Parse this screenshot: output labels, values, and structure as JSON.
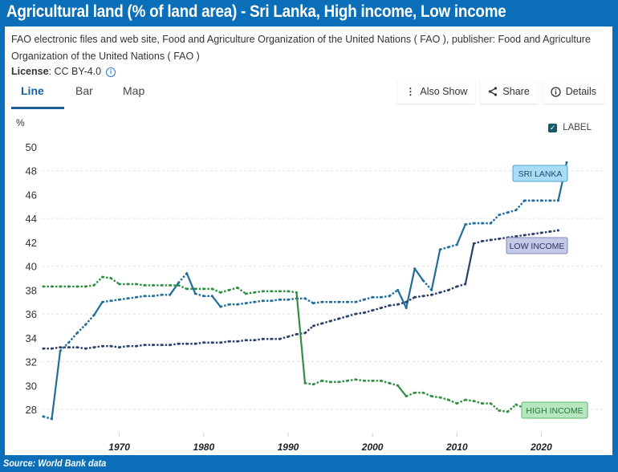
{
  "header": {
    "title": "Agricultural land (% of land area) - Sri Lanka, High income, Low income"
  },
  "meta": {
    "source_text": "FAO electronic files and web site, Food and Agriculture Organization of the United Nations ( FAO ), publisher: Food and Agriculture Organization of the United Nations ( FAO )",
    "license_label": "License",
    "license_value": ": CC BY-4.0",
    "info_icon": "info-icon"
  },
  "tabs": [
    {
      "label": "Line",
      "active": true
    },
    {
      "label": "Bar",
      "active": false
    },
    {
      "label": "Map",
      "active": false
    }
  ],
  "actions": [
    {
      "label": "Also Show",
      "icon": "kebab-icon"
    },
    {
      "label": "Share",
      "icon": "share-icon"
    },
    {
      "label": "Details",
      "icon": "info-icon"
    }
  ],
  "legend_toggle": {
    "label": "LABEL",
    "checked": true
  },
  "footer": {
    "source": "Source: World Bank data"
  },
  "colors": {
    "frame": "#0a6fb8",
    "sri_lanka": "#1f6e99",
    "low_income": "#2a3f6b",
    "high_income": "#2f8f45",
    "sri_lanka_label_bg": "#a9dcf5",
    "low_income_label_bg": "#c4c9e8",
    "high_income_label_bg": "#b8e6bf"
  },
  "chart_data": {
    "type": "line",
    "title": "Agricultural land (% of land area) - Sri Lanka, High income, Low income",
    "xlabel": "",
    "ylabel": "%",
    "xlim": [
      1961,
      2023
    ],
    "ylim": [
      27,
      50
    ],
    "yticks": [
      28,
      30,
      32,
      34,
      36,
      38,
      40,
      42,
      44,
      46,
      48,
      50
    ],
    "xticks": [
      1970,
      1980,
      1990,
      2000,
      2010,
      2020
    ],
    "grid": true,
    "legend": "inline-end-labels",
    "series": [
      {
        "name": "SRI LANKA",
        "x": [
          1961,
          1962,
          1963,
          1964,
          1965,
          1966,
          1967,
          1968,
          1969,
          1970,
          1971,
          1972,
          1973,
          1974,
          1975,
          1976,
          1977,
          1978,
          1979,
          1980,
          1981,
          1982,
          1983,
          1984,
          1985,
          1986,
          1987,
          1988,
          1989,
          1990,
          1991,
          1992,
          1993,
          1994,
          1995,
          1996,
          1997,
          1998,
          1999,
          2000,
          2001,
          2002,
          2003,
          2004,
          2005,
          2006,
          2007,
          2008,
          2009,
          2010,
          2011,
          2012,
          2013,
          2014,
          2015,
          2016,
          2017,
          2018,
          2019,
          2020,
          2021,
          2022,
          2023
        ],
        "values": [
          27.4,
          27.2,
          32.9,
          33.6,
          34.4,
          35.1,
          35.9,
          37.0,
          37.1,
          37.2,
          37.3,
          37.4,
          37.5,
          37.5,
          37.6,
          37.6,
          38.6,
          39.4,
          37.7,
          37.5,
          37.5,
          36.6,
          36.8,
          36.8,
          36.9,
          37.0,
          37.1,
          37.1,
          37.2,
          37.2,
          37.3,
          37.3,
          36.9,
          37.0,
          37.0,
          37.0,
          37.0,
          37.0,
          37.2,
          37.4,
          37.4,
          37.5,
          38.0,
          36.5,
          39.8,
          38.8,
          38.0,
          41.4,
          41.6,
          41.8,
          43.5,
          43.6,
          43.6,
          43.6,
          44.3,
          44.5,
          44.7,
          45.5,
          45.5,
          45.5,
          45.5,
          45.5,
          48.7
        ]
      },
      {
        "name": "LOW INCOME",
        "x": [
          1961,
          1962,
          1963,
          1964,
          1965,
          1966,
          1967,
          1968,
          1969,
          1970,
          1971,
          1972,
          1973,
          1974,
          1975,
          1976,
          1977,
          1978,
          1979,
          1980,
          1981,
          1982,
          1983,
          1984,
          1985,
          1986,
          1987,
          1988,
          1989,
          1990,
          1991,
          1992,
          1993,
          1994,
          1995,
          1996,
          1997,
          1998,
          1999,
          2000,
          2001,
          2002,
          2003,
          2004,
          2005,
          2006,
          2007,
          2008,
          2009,
          2010,
          2011,
          2012,
          2013,
          2014,
          2015,
          2016,
          2017,
          2018,
          2019,
          2020,
          2021,
          2022
        ],
        "values": [
          33.1,
          33.1,
          33.2,
          33.2,
          33.2,
          33.1,
          33.2,
          33.3,
          33.3,
          33.2,
          33.3,
          33.3,
          33.4,
          33.4,
          33.4,
          33.4,
          33.5,
          33.5,
          33.5,
          33.6,
          33.6,
          33.6,
          33.7,
          33.7,
          33.8,
          33.8,
          33.9,
          33.9,
          33.9,
          34.1,
          34.3,
          34.4,
          35.0,
          35.2,
          35.4,
          35.6,
          35.8,
          36.0,
          36.1,
          36.3,
          36.5,
          36.7,
          36.8,
          37.0,
          37.4,
          37.5,
          37.6,
          37.8,
          38.0,
          38.3,
          38.5,
          41.9,
          42.1,
          42.2,
          42.3,
          42.4,
          42.5,
          42.6,
          42.7,
          42.8,
          42.9,
          43.0
        ]
      },
      {
        "name": "HIGH INCOME",
        "x": [
          1961,
          1962,
          1963,
          1964,
          1965,
          1966,
          1967,
          1968,
          1969,
          1970,
          1971,
          1972,
          1973,
          1974,
          1975,
          1976,
          1977,
          1978,
          1979,
          1980,
          1981,
          1982,
          1983,
          1984,
          1985,
          1986,
          1987,
          1988,
          1989,
          1990,
          1991,
          1992,
          1993,
          1994,
          1995,
          1996,
          1997,
          1998,
          1999,
          2000,
          2001,
          2002,
          2003,
          2004,
          2005,
          2006,
          2007,
          2008,
          2009,
          2010,
          2011,
          2012,
          2013,
          2014,
          2015,
          2016,
          2017,
          2018,
          2019,
          2020,
          2021,
          2022
        ],
        "values": [
          38.3,
          38.3,
          38.3,
          38.3,
          38.3,
          38.3,
          38.4,
          39.1,
          39.0,
          38.5,
          38.5,
          38.5,
          38.4,
          38.4,
          38.4,
          38.4,
          38.4,
          38.1,
          38.1,
          38.1,
          38.1,
          37.8,
          38.0,
          38.2,
          37.7,
          37.8,
          37.9,
          37.9,
          37.9,
          37.9,
          37.8,
          30.2,
          30.1,
          30.4,
          30.3,
          30.3,
          30.4,
          30.5,
          30.4,
          30.4,
          30.4,
          30.2,
          30.0,
          29.1,
          29.4,
          29.4,
          29.1,
          29.0,
          28.8,
          28.5,
          28.8,
          28.7,
          28.5,
          28.5,
          27.9,
          27.8,
          28.4,
          28.1,
          28.1,
          27.9,
          28.1,
          28.2
        ]
      }
    ]
  }
}
